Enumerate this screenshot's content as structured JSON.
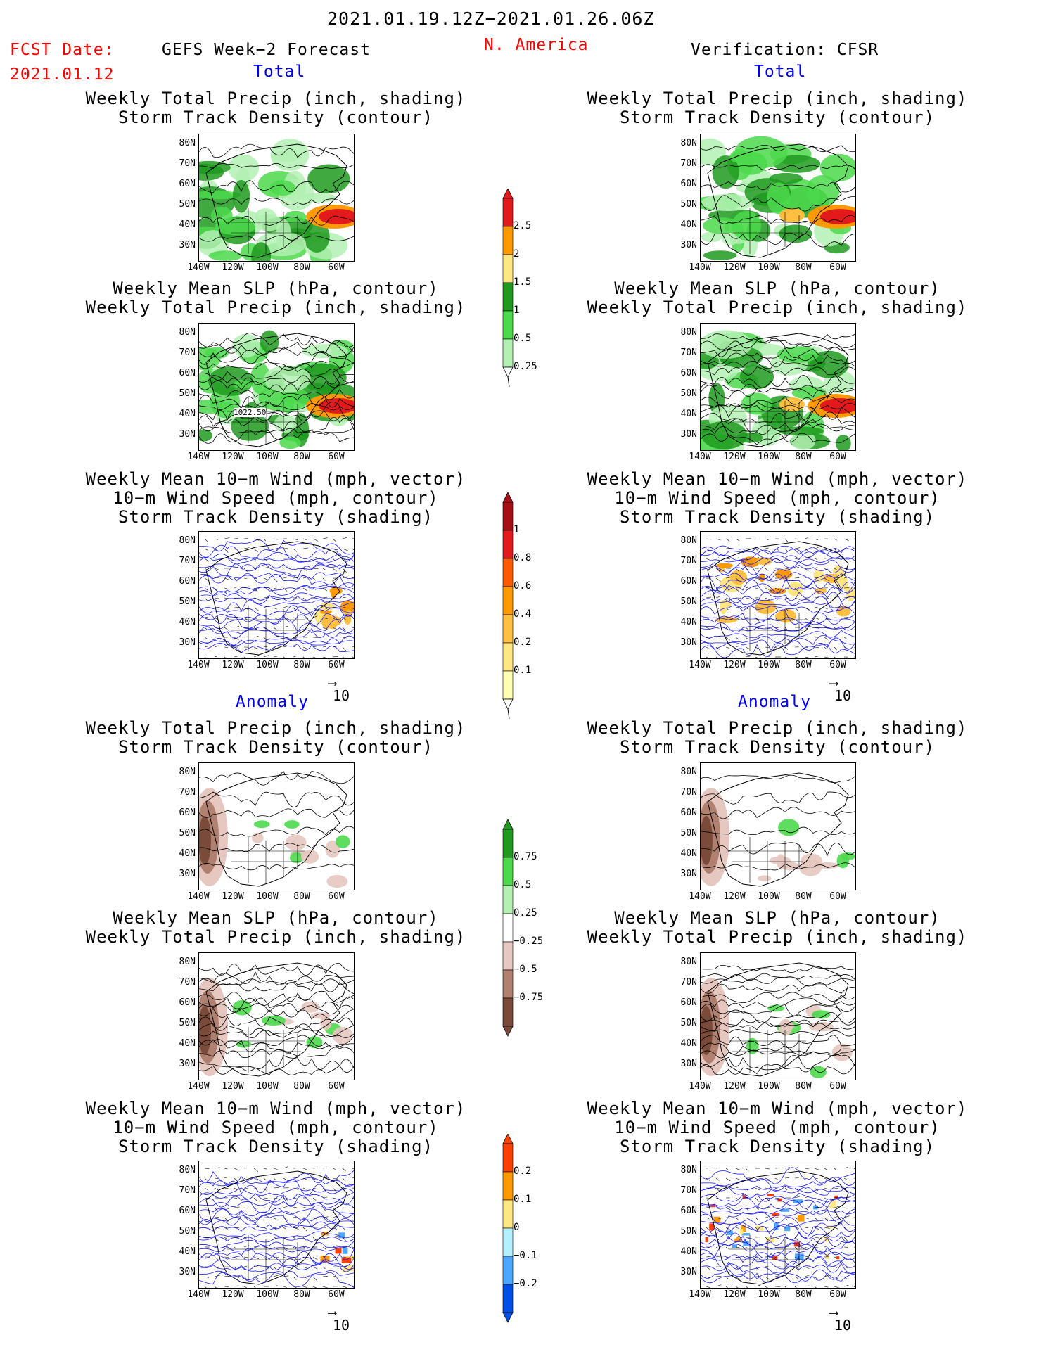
{
  "header": {
    "date_range": "2021.01.19.12Z−2021.01.26.06Z",
    "fcst_label": "FCST Date:",
    "fcst_date": "2021.01.12",
    "left_title": "GEFS Week−2 Forecast",
    "region": "N. America",
    "right_title": "Verification: CFSR",
    "total_label": "Total",
    "anomaly_label": "Anomaly"
  },
  "panel_titles": {
    "precip_storm": [
      "Weekly Total Precip (inch, shading)",
      "Storm Track Density (contour)"
    ],
    "slp_precip": [
      "Weekly Mean SLP (hPa, contour)",
      "Weekly Total Precip (inch, shading)"
    ],
    "wind_storm": [
      "Weekly Mean 10−m Wind (mph, vector)",
      "10−m Wind Speed (mph, contour)",
      "Storm Track Density (shading)"
    ]
  },
  "axes": {
    "lat_ticks": [
      "80N",
      "70N",
      "60N",
      "50N",
      "40N",
      "30N"
    ],
    "lon_ticks": [
      "140W",
      "120W",
      "100W",
      "80W",
      "60W"
    ]
  },
  "contour_label": "1022.50",
  "vector_ref": "10",
  "colorbars": {
    "precip_total": {
      "labels": [
        "2.5",
        "2",
        "1.5",
        "1",
        "0.5",
        "0.25"
      ],
      "colors": [
        "#e31a1c",
        "#ff9900",
        "#ffe680",
        "#1f9a1f",
        "#4cd94c",
        "#b3f0b3"
      ]
    },
    "storm_total": {
      "labels": [
        "1",
        "0.8",
        "0.6",
        "0.4",
        "0.2",
        "0.1"
      ],
      "colors": [
        "#a50f15",
        "#e31a1c",
        "#ff5a00",
        "#ff9900",
        "#ffbf40",
        "#ffe680",
        "#ffffb3"
      ]
    },
    "precip_anom": {
      "labels": [
        "0.75",
        "0.5",
        "0.25",
        "−0.25",
        "−0.5",
        "−0.75"
      ],
      "colors": [
        "#1f9a1f",
        "#4cd94c",
        "#b3f0b3",
        "#ffffff",
        "#e6c8c0",
        "#b08070",
        "#7a4a3a"
      ]
    },
    "storm_anom": {
      "labels": [
        "0.2",
        "0.1",
        "0",
        "−0.1",
        "−0.2"
      ],
      "colors": [
        "#ff4000",
        "#ff9900",
        "#ffe680",
        "#b3f0ff",
        "#4da6ff",
        "#0050e6"
      ]
    }
  }
}
